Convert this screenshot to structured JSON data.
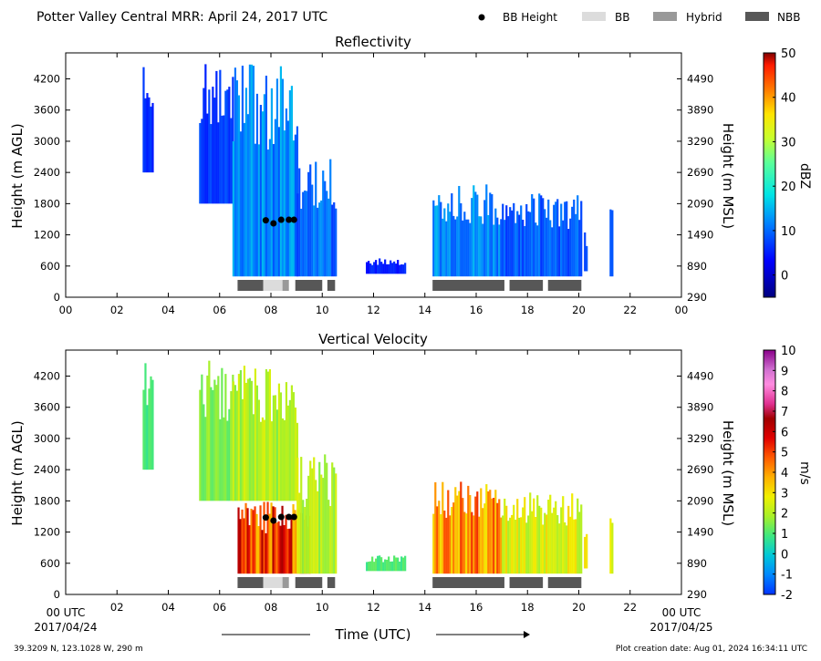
{
  "header": {
    "title": "Potter Valley Central MRR:  April 24, 2017 UTC",
    "legend": [
      {
        "label": "BB Height",
        "kind": "dot",
        "color": "#000000"
      },
      {
        "label": "BB",
        "kind": "box",
        "color": "#dcdcdc"
      },
      {
        "label": "Hybrid",
        "kind": "box",
        "color": "#999999"
      },
      {
        "label": "NBB",
        "kind": "box",
        "color": "#575757"
      }
    ]
  },
  "footer": {
    "start_label": "00 UTC",
    "start_date": "2017/04/24",
    "end_label": "00 UTC",
    "end_date": "2017/04/25",
    "xlabel": "Time (UTC)",
    "location": "39.3209 N, 123.1028 W, 290 m",
    "creation": "Plot creation date: Aug 01, 2024 16:34:11 UTC"
  },
  "chart_data": [
    {
      "type": "heatmap",
      "title": "Reflectivity",
      "ylabel": "Height (m AGL)",
      "ylabel_right": "Height (m MSL)",
      "xlim": [
        0,
        24
      ],
      "ylim": [
        0,
        4700
      ],
      "x_ticks": [
        "00",
        "02",
        "04",
        "06",
        "08",
        "10",
        "12",
        "14",
        "16",
        "18",
        "20",
        "22",
        "00"
      ],
      "y_ticks": [
        0,
        600,
        1200,
        1800,
        2400,
        3000,
        3600,
        4200
      ],
      "y_ticks_right": [
        290,
        890,
        1490,
        2090,
        2690,
        3290,
        3890,
        4490
      ],
      "colorbar": {
        "label": "dBZ",
        "range": [
          -5,
          50
        ],
        "ticks": [
          0,
          10,
          20,
          30,
          40,
          50
        ]
      },
      "bb_height": [
        {
          "x": 7.8,
          "y": 1480
        },
        {
          "x": 8.1,
          "y": 1420
        },
        {
          "x": 8.4,
          "y": 1490
        },
        {
          "x": 8.7,
          "y": 1490
        },
        {
          "x": 8.9,
          "y": 1490
        }
      ],
      "bb_type": [
        {
          "start": 6.7,
          "end": 7.7,
          "type": "NBB"
        },
        {
          "start": 7.7,
          "end": 8.45,
          "type": "BB"
        },
        {
          "start": 8.45,
          "end": 8.7,
          "type": "Hybrid"
        },
        {
          "start": 8.95,
          "end": 10.0,
          "type": "NBB"
        },
        {
          "start": 10.2,
          "end": 10.5,
          "type": "NBB"
        },
        {
          "start": 14.3,
          "end": 17.1,
          "type": "NBB"
        },
        {
          "start": 17.3,
          "end": 18.6,
          "type": "NBB"
        },
        {
          "start": 18.8,
          "end": 20.1,
          "type": "NBB"
        }
      ],
      "echo": [
        {
          "start": 3.0,
          "end": 3.4,
          "bottom": 2400,
          "top": 4500,
          "value": 6
        },
        {
          "start": 5.2,
          "end": 6.5,
          "bottom": 1800,
          "top": 4500,
          "value": 7
        },
        {
          "start": 6.5,
          "end": 9.0,
          "bottom": 400,
          "top": 4500,
          "value": 12
        },
        {
          "start": 9.0,
          "end": 10.5,
          "bottom": 400,
          "top": 2700,
          "value": 10
        },
        {
          "start": 11.7,
          "end": 13.2,
          "bottom": 450,
          "top": 750,
          "value": 5
        },
        {
          "start": 14.3,
          "end": 17.0,
          "bottom": 400,
          "top": 2200,
          "value": 12
        },
        {
          "start": 17.0,
          "end": 20.1,
          "bottom": 400,
          "top": 2000,
          "value": 9
        },
        {
          "start": 20.2,
          "end": 20.3,
          "bottom": 500,
          "top": 1300,
          "value": 8
        },
        {
          "start": 21.2,
          "end": 21.3,
          "bottom": 400,
          "top": 1700,
          "value": 9
        }
      ]
    },
    {
      "type": "heatmap",
      "title": "Vertical Velocity",
      "ylabel": "Height (m AGL)",
      "ylabel_right": "Height (m MSL)",
      "xlim": [
        0,
        24
      ],
      "ylim": [
        0,
        4700
      ],
      "x_ticks": [
        "",
        "02",
        "04",
        "06",
        "08",
        "10",
        "12",
        "14",
        "16",
        "18",
        "20",
        "22",
        ""
      ],
      "y_ticks": [
        0,
        600,
        1200,
        1800,
        2400,
        3000,
        3600,
        4200
      ],
      "y_ticks_right": [
        290,
        890,
        1490,
        2090,
        2690,
        3290,
        3890,
        4490
      ],
      "colorbar": {
        "label": "m/s",
        "range": [
          -2,
          10
        ],
        "ticks": [
          -2,
          -1,
          0,
          1,
          2,
          3,
          4,
          5,
          6,
          7,
          8,
          9,
          10
        ]
      },
      "bb_height": [
        {
          "x": 7.8,
          "y": 1480
        },
        {
          "x": 8.1,
          "y": 1420
        },
        {
          "x": 8.4,
          "y": 1490
        },
        {
          "x": 8.7,
          "y": 1490
        },
        {
          "x": 8.9,
          "y": 1490
        }
      ],
      "bb_type": [
        {
          "start": 6.7,
          "end": 7.7,
          "type": "NBB"
        },
        {
          "start": 7.7,
          "end": 8.45,
          "type": "BB"
        },
        {
          "start": 8.45,
          "end": 8.7,
          "type": "Hybrid"
        },
        {
          "start": 8.95,
          "end": 10.0,
          "type": "NBB"
        },
        {
          "start": 10.2,
          "end": 10.5,
          "type": "NBB"
        },
        {
          "start": 14.3,
          "end": 17.1,
          "type": "NBB"
        },
        {
          "start": 17.3,
          "end": 18.6,
          "type": "NBB"
        },
        {
          "start": 18.8,
          "end": 20.1,
          "type": "NBB"
        }
      ],
      "echo": [
        {
          "start": 3.0,
          "end": 3.4,
          "bottom": 2400,
          "top": 4500,
          "value": 1
        },
        {
          "start": 5.2,
          "end": 6.5,
          "bottom": 1800,
          "top": 4500,
          "value": 1.5
        },
        {
          "start": 6.5,
          "end": 9.0,
          "bottom": 1800,
          "top": 4500,
          "value": 2
        },
        {
          "start": 6.7,
          "end": 9.5,
          "bottom": 400,
          "top": 1800,
          "value": 5
        },
        {
          "start": 9.0,
          "end": 10.5,
          "bottom": 400,
          "top": 2700,
          "value": 2
        },
        {
          "start": 11.7,
          "end": 13.2,
          "bottom": 450,
          "top": 750,
          "value": 1
        },
        {
          "start": 14.3,
          "end": 17.0,
          "bottom": 400,
          "top": 2200,
          "value": 4
        },
        {
          "start": 17.0,
          "end": 20.1,
          "bottom": 400,
          "top": 2000,
          "value": 2.5
        },
        {
          "start": 20.2,
          "end": 20.3,
          "bottom": 500,
          "top": 1300,
          "value": 3.5
        },
        {
          "start": 21.2,
          "end": 21.3,
          "bottom": 400,
          "top": 1700,
          "value": 3
        }
      ]
    }
  ]
}
